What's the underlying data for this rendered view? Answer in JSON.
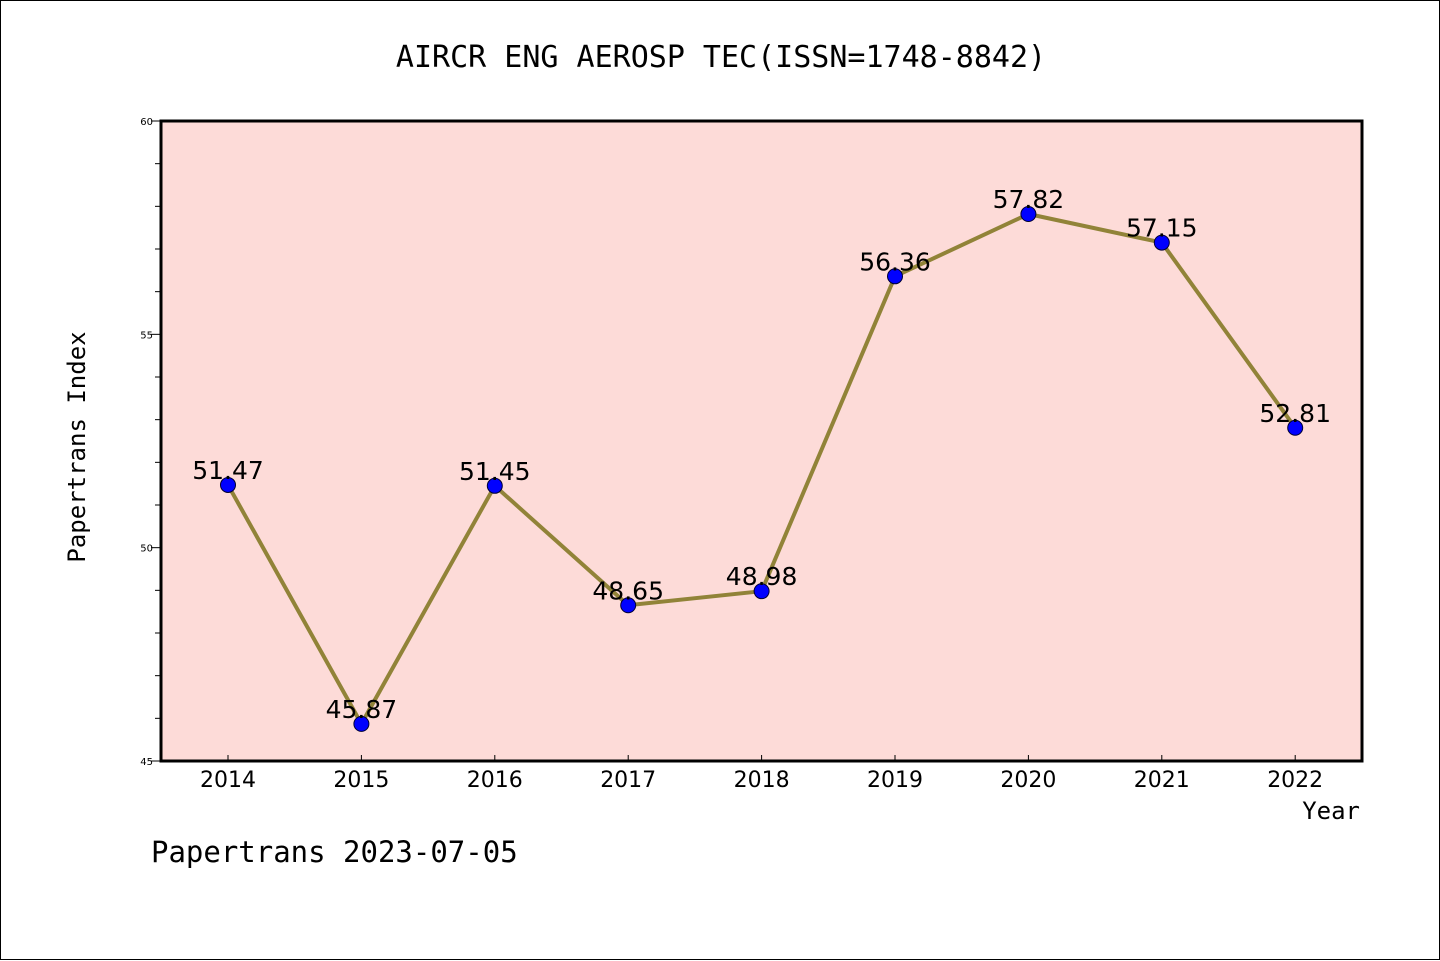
{
  "chart_data": {
    "type": "line",
    "title": "AIRCR ENG AEROSP TEC(ISSN=1748-8842)",
    "xlabel": "Year",
    "ylabel": "Papertrans Index",
    "categories": [
      "2014",
      "2015",
      "2016",
      "2017",
      "2018",
      "2019",
      "2020",
      "2021",
      "2022"
    ],
    "series": [
      {
        "values": [
          51.47,
          45.87,
          51.45,
          48.65,
          48.98,
          56.36,
          57.82,
          57.15,
          52.81
        ]
      }
    ],
    "data_labels": [
      "51.47",
      "45.87",
      "51.45",
      "48.65",
      "48.98",
      "56.36",
      "57.82",
      "57.15",
      "52.81"
    ],
    "ylim": [
      45,
      60
    ],
    "yticks": [
      "45",
      "50",
      "55",
      "60"
    ],
    "grid": false,
    "legend": "none"
  },
  "colors": {
    "plot_background": "#fddbd8",
    "line": "#918338",
    "marker": "#0000ff",
    "axis": "#000000"
  },
  "footer": {
    "text": "Papertrans 2023-07-05"
  }
}
